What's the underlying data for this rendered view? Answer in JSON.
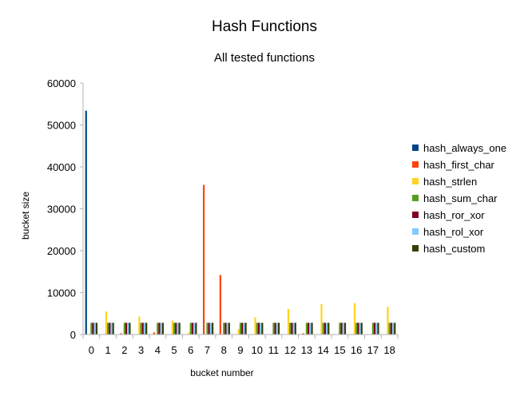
{
  "chart_data": {
    "type": "bar",
    "title": "Hash Functions",
    "subtitle": "All tested functions",
    "xlabel": "bucket number",
    "ylabel": "bucket size",
    "ylim": [
      0,
      60000
    ],
    "yticks": [
      0,
      10000,
      20000,
      30000,
      40000,
      50000,
      60000
    ],
    "grid": false,
    "legend_position": "right",
    "categories": [
      "0",
      "1",
      "2",
      "3",
      "4",
      "5",
      "6",
      "7",
      "8",
      "9",
      "10",
      "11",
      "12",
      "13",
      "14",
      "15",
      "16",
      "17",
      "18"
    ],
    "series": [
      {
        "name": "hash_always_one",
        "color": "#004586",
        "values": [
          53400,
          0,
          0,
          0,
          0,
          0,
          0,
          0,
          0,
          0,
          0,
          0,
          0,
          0,
          0,
          0,
          0,
          0,
          0
        ]
      },
      {
        "name": "hash_first_char",
        "color": "#ff420e",
        "values": [
          0,
          0,
          300,
          0,
          500,
          0,
          0,
          35700,
          14200,
          0,
          0,
          0,
          0,
          300,
          0,
          0,
          0,
          0,
          0
        ]
      },
      {
        "name": "hash_strlen",
        "color": "#ffd320",
        "values": [
          0,
          5500,
          0,
          4300,
          0,
          3300,
          500,
          0,
          0,
          1300,
          4100,
          0,
          6100,
          0,
          7300,
          0,
          7500,
          0,
          6600
        ]
      },
      {
        "name": "hash_sum_char",
        "color": "#579d1c",
        "values": [
          2800,
          2800,
          2800,
          2800,
          2800,
          2800,
          2800,
          2800,
          2800,
          2800,
          2800,
          2800,
          2800,
          2800,
          2800,
          2800,
          2800,
          2800,
          2800
        ]
      },
      {
        "name": "hash_ror_xor",
        "color": "#7e0021",
        "values": [
          2800,
          2800,
          2800,
          2800,
          2800,
          2800,
          2800,
          2800,
          2800,
          2800,
          2800,
          2800,
          2800,
          2800,
          2800,
          2800,
          2800,
          2800,
          2800
        ]
      },
      {
        "name": "hash_rol_xor",
        "color": "#83caff",
        "values": [
          2800,
          2800,
          2800,
          2800,
          2800,
          2800,
          2800,
          2800,
          2800,
          2800,
          2800,
          2800,
          2800,
          2800,
          2800,
          2800,
          2800,
          2800,
          2800
        ]
      },
      {
        "name": "hash_custom",
        "color": "#314004",
        "values": [
          2800,
          2800,
          2800,
          2800,
          2800,
          2800,
          2800,
          2800,
          2800,
          2800,
          2800,
          2800,
          2800,
          2800,
          2800,
          2800,
          2800,
          2800,
          2800
        ]
      }
    ]
  }
}
